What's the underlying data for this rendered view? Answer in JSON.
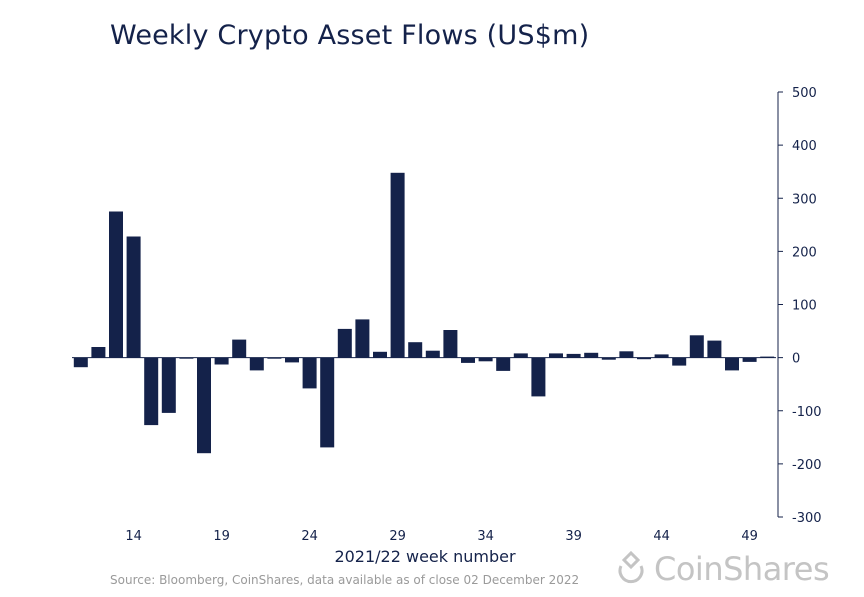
{
  "title": "Weekly Crypto Asset Flows (US$m)",
  "source": "Source: Bloomberg, CoinShares, data available as of close 02 December 2022",
  "logo_text": "CoinShares",
  "colors": {
    "bar": "#14224a",
    "axis": "#14224a",
    "text": "#14224a",
    "muted": "#9a9a9a",
    "logo": "#c4c4c4"
  },
  "chart_data": {
    "type": "bar",
    "title": "Weekly Crypto Asset Flows (US$m)",
    "xlabel": "2021/22 week number",
    "ylabel": "",
    "ylim": [
      -300,
      500
    ],
    "yticks": [
      500,
      400,
      300,
      200,
      100,
      0,
      -100,
      -200,
      -300
    ],
    "y_axis_position": "right",
    "xtick_labels": [
      {
        "label": "14",
        "x": "2021/14"
      },
      {
        "label": "19",
        "x": "2021/19"
      },
      {
        "label": "24",
        "x": "2021/24"
      },
      {
        "label": "29",
        "x": "2021/29"
      },
      {
        "label": "34",
        "x": "2021/34"
      },
      {
        "label": "39",
        "x": "2021/39"
      },
      {
        "label": "44",
        "x": "2021/44"
      },
      {
        "label": "49",
        "x": "2021/49"
      }
    ],
    "categories": [
      "2021/11",
      "2021/12",
      "2021/13",
      "2021/14",
      "2021/15",
      "2021/16",
      "2021/17",
      "2021/18",
      "2021/19",
      "2021/20",
      "2021/21",
      "2021/22",
      "2021/23",
      "2021/24",
      "2021/25",
      "2021/26",
      "2021/27",
      "2021/28",
      "2021/29",
      "2021/30",
      "2021/31",
      "2021/32",
      "2021/33",
      "2021/34",
      "2021/35",
      "2021/36",
      "2021/37",
      "2021/38",
      "2021/39",
      "2021/40",
      "2021/41",
      "2021/42",
      "2021/43",
      "2021/44",
      "2021/45",
      "2021/46",
      "2021/47",
      "2021/48",
      "2021/49",
      "2021/50"
    ],
    "values": [
      -18,
      20,
      275,
      228,
      -127,
      -104,
      -2,
      -180,
      -13,
      34,
      -24,
      -2,
      -9,
      -58,
      -169,
      54,
      72,
      11,
      348,
      29,
      13,
      52,
      -10,
      -7,
      -25,
      8,
      -73,
      8,
      7,
      9,
      -4,
      12,
      -3,
      6,
      -15,
      42,
      32,
      -24,
      -8,
      2
    ],
    "grid": false,
    "legend": "none"
  }
}
